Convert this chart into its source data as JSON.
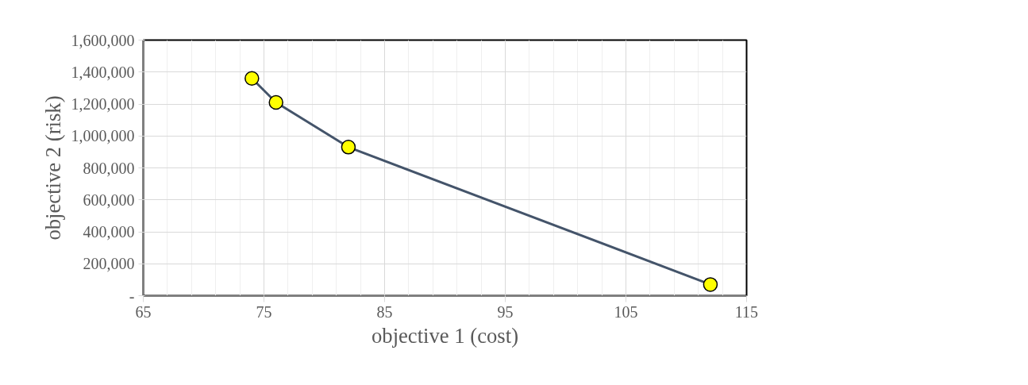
{
  "chart_data": {
    "type": "line",
    "xlabel": "objective 1 (cost)",
    "ylabel": "objective 2 (risk)",
    "x": [
      74,
      76,
      82,
      112
    ],
    "series": [
      {
        "color": "#44546a",
        "values": [
          1360000,
          1210000,
          930000,
          70000
        ]
      }
    ],
    "marker": "circle",
    "line_style": "solid",
    "grid": true,
    "xlim": [
      65,
      115
    ],
    "xticks": [
      65,
      75,
      85,
      95,
      105,
      115
    ],
    "ylim": [
      0,
      1600000
    ],
    "yticks": [
      {
        "value": 0,
        "label": "-"
      },
      {
        "value": 200000,
        "label": "200,000"
      },
      {
        "value": 400000,
        "label": "400,000"
      },
      {
        "value": 600000,
        "label": "600,000"
      },
      {
        "value": 800000,
        "label": "800,000"
      },
      {
        "value": 1000000,
        "label": "1,000,000"
      },
      {
        "value": 1200000,
        "label": "1,200,000"
      },
      {
        "value": 1400000,
        "label": "1,400,000"
      },
      {
        "value": 1600000,
        "label": "1,600,000"
      }
    ]
  }
}
